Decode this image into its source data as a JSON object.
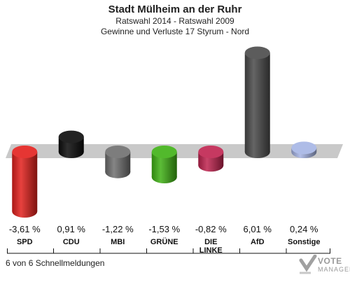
{
  "header": {
    "title": "Stadt Mülheim an der Ruhr",
    "subtitle1": "Ratswahl 2014 - Ratswahl 2009",
    "subtitle2": "Gewinne und Verluste 17 Styrum - Nord"
  },
  "footer": {
    "note": "6 von 6 Schnellmeldungen"
  },
  "logo": {
    "name": "VOTE",
    "sub": "MANAGER",
    "icon": "checkmark-icon"
  },
  "chart_data": {
    "type": "bar",
    "categories": [
      "SPD",
      "CDU",
      "MBI",
      "GRÜNE",
      "DIE LINKE",
      "AfD",
      "Sonstige"
    ],
    "category_lines": [
      [
        "SPD"
      ],
      [
        "CDU"
      ],
      [
        "MBI"
      ],
      [
        "GRÜNE"
      ],
      [
        "DIE",
        "LINKE"
      ],
      [
        "AfD"
      ],
      [
        "Sonstige"
      ]
    ],
    "values": [
      -3.61,
      0.91,
      -1.22,
      -1.53,
      -0.82,
      6.01,
      0.24
    ],
    "value_labels": [
      "-3,61 %",
      "0,91 %",
      "-1,22 %",
      "-1,53 %",
      "-0,82 %",
      "6,01 %",
      "0,24 %"
    ],
    "colors": [
      "#e3201c",
      "#0a0a0a",
      "#6f6f6f",
      "#3fb114",
      "#c0234f",
      "#4a4a4a",
      "#a5b4e4"
    ],
    "ylim": [
      -3.61,
      6.01
    ],
    "grid": false,
    "legend": "none"
  }
}
